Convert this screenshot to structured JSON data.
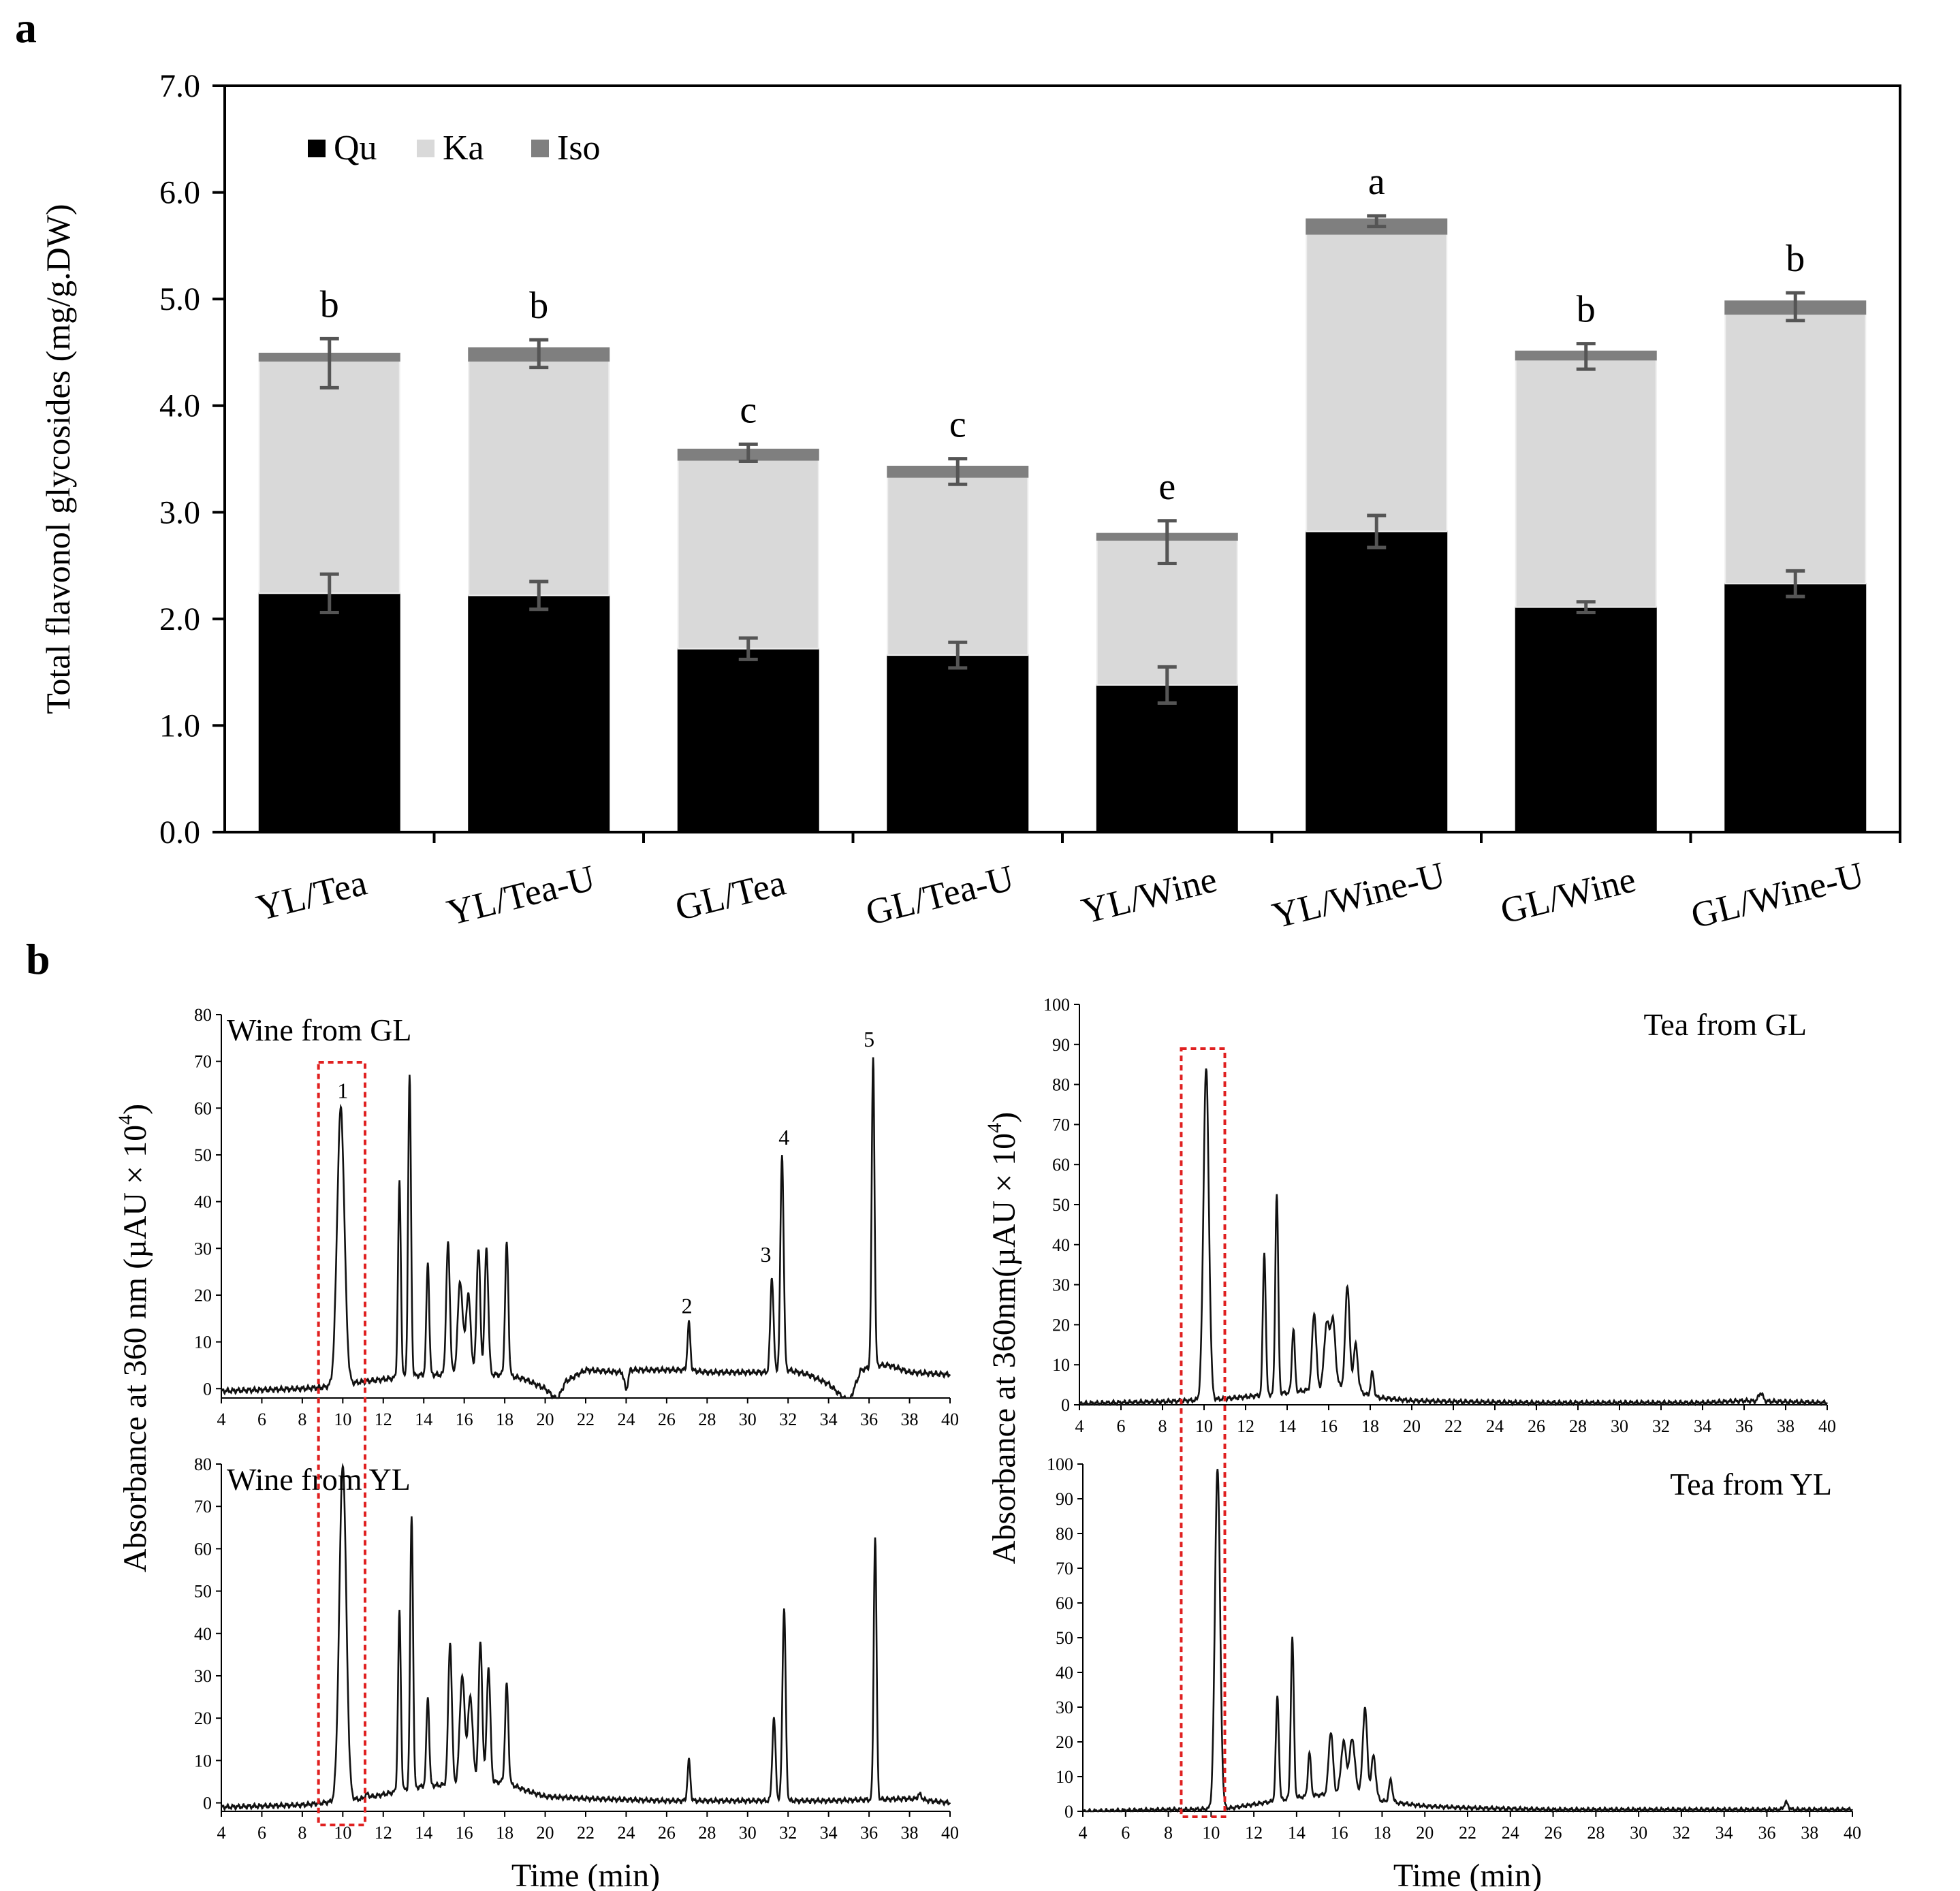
{
  "panel_labels": {
    "a": "a",
    "b": "b"
  },
  "chart_data": [
    {
      "id": "stacked",
      "type": "bar",
      "stacked": true,
      "categories": [
        "YL/Tea",
        "YL/Tea-U",
        "GL/Tea",
        "GL/Tea-U",
        "YL/Wine",
        "YL/Wine-U",
        "GL/Wine",
        "GL/Wine-U"
      ],
      "series": [
        {
          "name": "Qu",
          "color": "#000000",
          "values": [
            2.24,
            2.22,
            1.72,
            1.66,
            1.38,
            2.82,
            2.11,
            2.33
          ],
          "errors": [
            0.18,
            0.13,
            0.1,
            0.12,
            0.17,
            0.15,
            0.05,
            0.12
          ]
        },
        {
          "name": "Ka",
          "color": "#d9d9d9",
          "values": [
            2.18,
            2.2,
            1.77,
            1.67,
            1.36,
            2.79,
            2.32,
            2.53
          ]
        },
        {
          "name": "Iso",
          "color": "#7f7f7f",
          "values": [
            0.07,
            0.12,
            0.1,
            0.1,
            0.06,
            0.14,
            0.08,
            0.12
          ]
        }
      ],
      "total_errors": [
        0.23,
        0.13,
        0.08,
        0.12,
        0.2,
        0.05,
        0.12,
        0.13
      ],
      "significance": [
        "b",
        "b",
        "c",
        "c",
        "e",
        "a",
        "b",
        "b"
      ],
      "ylabel": "Total flavonol glycosides (mg/g.DW)",
      "ylim": [
        0,
        7
      ],
      "yticks": [
        "0.0",
        "1.0",
        "2.0",
        "3.0",
        "4.0",
        "5.0",
        "6.0",
        "7.0"
      ],
      "legend": "top-left"
    },
    {
      "id": "wine-gl",
      "type": "line",
      "title": "Wine  from GL",
      "xlim": [
        4,
        40
      ],
      "ylim": [
        -2,
        80
      ],
      "yticks": [
        0,
        10,
        20,
        30,
        40,
        50,
        60,
        70,
        80
      ],
      "xticks": [
        4,
        6,
        8,
        10,
        12,
        14,
        16,
        18,
        20,
        22,
        24,
        26,
        28,
        30,
        32,
        34,
        36,
        38,
        40
      ],
      "baseline": [
        [
          4,
          -0.5
        ],
        [
          8,
          0
        ],
        [
          9,
          0.3
        ],
        [
          11,
          1.5
        ],
        [
          12,
          2
        ],
        [
          14,
          3
        ],
        [
          18,
          3
        ],
        [
          19,
          2
        ],
        [
          20,
          0
        ],
        [
          20.6,
          -2.5
        ],
        [
          21,
          1.5
        ],
        [
          22,
          4
        ],
        [
          23.8,
          3.5
        ],
        [
          24,
          -0.5
        ],
        [
          24.2,
          4
        ],
        [
          26,
          4
        ],
        [
          27,
          4
        ],
        [
          28,
          3.5
        ],
        [
          30,
          3.5
        ],
        [
          31,
          3.5
        ],
        [
          32,
          4
        ],
        [
          33,
          3
        ],
        [
          34,
          1
        ],
        [
          35,
          -3
        ],
        [
          35.6,
          4
        ],
        [
          36.5,
          5
        ],
        [
          37,
          5
        ],
        [
          38,
          3.5
        ],
        [
          40,
          3
        ]
      ],
      "peaks": [
        [
          9.9,
          60,
          0.18
        ],
        [
          12.8,
          44,
          0.07
        ],
        [
          13.3,
          67,
          0.07
        ],
        [
          14.2,
          27,
          0.07
        ],
        [
          15.2,
          31,
          0.09
        ],
        [
          15.8,
          23,
          0.12
        ],
        [
          16.2,
          20,
          0.12
        ],
        [
          16.7,
          30,
          0.09
        ],
        [
          17.1,
          30,
          0.09
        ],
        [
          18.1,
          31,
          0.08
        ],
        [
          27.1,
          14,
          0.07
        ],
        [
          31.2,
          24,
          0.08
        ],
        [
          31.7,
          50,
          0.08
        ],
        [
          36.2,
          71,
          0.07
        ]
      ],
      "peak_labels": [
        {
          "label": "1",
          "x": 10.0,
          "y": 61
        },
        {
          "label": "2",
          "x": 27.0,
          "y": 15
        },
        {
          "label": "3",
          "x": 30.9,
          "y": 26
        },
        {
          "label": "4",
          "x": 31.8,
          "y": 51
        },
        {
          "label": "5",
          "x": 36.0,
          "y": 72
        }
      ]
    },
    {
      "id": "wine-yl",
      "type": "line",
      "title": "Wine from YL",
      "xlim": [
        4,
        40
      ],
      "ylim": [
        -2,
        80
      ],
      "yticks": [
        0,
        10,
        20,
        30,
        40,
        50,
        60,
        70,
        80
      ],
      "xticks": [
        4,
        6,
        8,
        10,
        12,
        14,
        16,
        18,
        20,
        22,
        24,
        26,
        28,
        30,
        32,
        34,
        36,
        38,
        40
      ],
      "xlabel": "Time (min)",
      "baseline": [
        [
          4,
          -1
        ],
        [
          8,
          -0.5
        ],
        [
          9,
          0
        ],
        [
          11,
          1
        ],
        [
          12,
          2
        ],
        [
          14,
          4
        ],
        [
          18,
          5
        ],
        [
          19,
          3
        ],
        [
          20,
          1.5
        ],
        [
          22,
          1
        ],
        [
          26,
          0.5
        ],
        [
          30,
          0.5
        ],
        [
          34,
          0.5
        ],
        [
          38,
          1
        ],
        [
          40,
          0
        ]
      ],
      "peaks": [
        [
          10.0,
          80,
          0.17
        ],
        [
          11.2,
          2,
          0.1
        ],
        [
          12.8,
          45,
          0.07
        ],
        [
          13.4,
          68,
          0.07
        ],
        [
          14.2,
          25,
          0.07
        ],
        [
          15.3,
          38,
          0.09
        ],
        [
          15.9,
          30,
          0.12
        ],
        [
          16.3,
          25,
          0.12
        ],
        [
          16.8,
          38,
          0.09
        ],
        [
          17.2,
          32,
          0.09
        ],
        [
          18.1,
          28,
          0.08
        ],
        [
          27.1,
          10,
          0.07
        ],
        [
          31.3,
          20,
          0.08
        ],
        [
          31.8,
          46,
          0.08
        ],
        [
          36.3,
          63,
          0.07
        ],
        [
          38.5,
          2,
          0.1
        ]
      ]
    },
    {
      "id": "tea-gl",
      "type": "line",
      "title": "Tea  from  GL",
      "xlim": [
        4,
        40
      ],
      "ylim": [
        0,
        100
      ],
      "yticks": [
        0,
        10,
        20,
        30,
        40,
        50,
        60,
        70,
        80,
        90,
        100
      ],
      "xticks": [
        4,
        6,
        8,
        10,
        12,
        14,
        16,
        18,
        20,
        22,
        24,
        26,
        28,
        30,
        32,
        34,
        36,
        38,
        40
      ],
      "baseline": [
        [
          4,
          0.3
        ],
        [
          8,
          0.8
        ],
        [
          9,
          1
        ],
        [
          11,
          1.5
        ],
        [
          12,
          2
        ],
        [
          14,
          3
        ],
        [
          17,
          5
        ],
        [
          18,
          2
        ],
        [
          20,
          1
        ],
        [
          22,
          0.8
        ],
        [
          26,
          0.5
        ],
        [
          34,
          0.5
        ],
        [
          36,
          1
        ],
        [
          40,
          0.5
        ]
      ],
      "peaks": [
        [
          10.1,
          84,
          0.13
        ],
        [
          12.9,
          38,
          0.07
        ],
        [
          13.5,
          53,
          0.07
        ],
        [
          14.3,
          19,
          0.07
        ],
        [
          15.3,
          23,
          0.1
        ],
        [
          15.9,
          20,
          0.12
        ],
        [
          16.2,
          21,
          0.12
        ],
        [
          16.9,
          30,
          0.1
        ],
        [
          17.3,
          15,
          0.1
        ],
        [
          18.1,
          8,
          0.08
        ],
        [
          36.8,
          3,
          0.1
        ]
      ]
    },
    {
      "id": "tea-yl",
      "type": "line",
      "title": "Tea  from  YL",
      "xlim": [
        4,
        40
      ],
      "ylim": [
        0,
        100
      ],
      "yticks": [
        0,
        10,
        20,
        30,
        40,
        50,
        60,
        70,
        80,
        90,
        100
      ],
      "xticks": [
        4,
        6,
        8,
        10,
        12,
        14,
        16,
        18,
        20,
        22,
        24,
        26,
        28,
        30,
        32,
        34,
        36,
        38,
        40
      ],
      "xlabel": "Time (min)",
      "baseline": [
        [
          4,
          0
        ],
        [
          8,
          0.5
        ],
        [
          9,
          0.5
        ],
        [
          11,
          1
        ],
        [
          12,
          2
        ],
        [
          14,
          4
        ],
        [
          17,
          6
        ],
        [
          18,
          3
        ],
        [
          20,
          1.5
        ],
        [
          22,
          1
        ],
        [
          26,
          0.5
        ],
        [
          34,
          0.5
        ],
        [
          36,
          0.5
        ],
        [
          40,
          0.5
        ]
      ],
      "peaks": [
        [
          10.3,
          99,
          0.12
        ],
        [
          13.1,
          33,
          0.07
        ],
        [
          13.8,
          50,
          0.07
        ],
        [
          14.6,
          17,
          0.07
        ],
        [
          15.6,
          23,
          0.1
        ],
        [
          16.2,
          20,
          0.12
        ],
        [
          16.6,
          21,
          0.12
        ],
        [
          17.2,
          30,
          0.1
        ],
        [
          17.6,
          16,
          0.1
        ],
        [
          18.4,
          9,
          0.08
        ],
        [
          36.9,
          2.5,
          0.1
        ]
      ]
    }
  ],
  "absorbance_label_left": "Absorbance at  360 nm (µAU × 10",
  "absorbance_label_right": "Absorbance at  360nm(µAU × 10",
  "superscript": "4",
  "closing_paren": ")",
  "highlight_box_color": "#e02020",
  "peak_label_color": "#ff0000"
}
